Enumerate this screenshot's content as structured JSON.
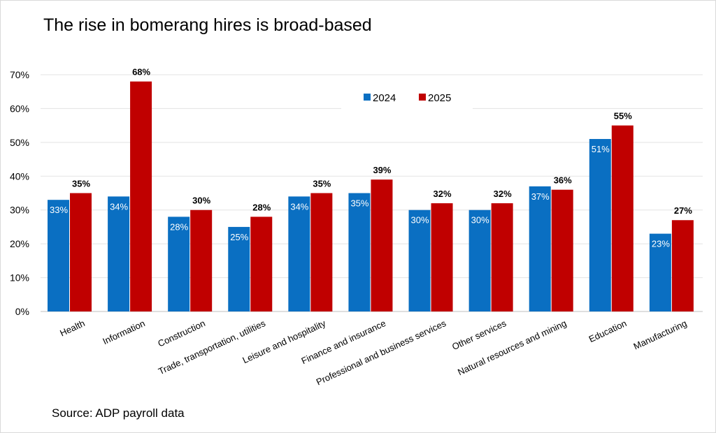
{
  "chart_data": {
    "type": "bar",
    "title": "The rise in bomerang hires is broad-based",
    "source": "Source: ADP payroll data",
    "xlabel": "",
    "ylabel": "",
    "ylim": [
      0,
      70
    ],
    "yticks": [
      "0%",
      "10%",
      "20%",
      "30%",
      "40%",
      "50%",
      "60%",
      "70%"
    ],
    "grid": true,
    "legend_position": "top-center",
    "categories": [
      "Health",
      "Information",
      "Construction",
      "Trade, transportation, utilities",
      "Leisure and hospitality",
      "Finance and insurance",
      "Professional and business services",
      "Other services",
      "Natural resources and mining",
      "Education",
      "Manufacturing"
    ],
    "series": [
      {
        "name": "2024",
        "color": "#0a6fc2",
        "values": [
          33,
          34,
          28,
          25,
          34,
          35,
          30,
          30,
          37,
          51,
          23
        ],
        "labels": [
          "33%",
          "34%",
          "28%",
          "25%",
          "34%",
          "35%",
          "30%",
          "30%",
          "37%",
          "51%",
          "23%"
        ]
      },
      {
        "name": "2025",
        "color": "#c00000",
        "values": [
          35,
          68,
          30,
          28,
          35,
          39,
          32,
          32,
          36,
          55,
          27
        ],
        "labels": [
          "35%",
          "68%",
          "30%",
          "28%",
          "35%",
          "39%",
          "32%",
          "32%",
          "36%",
          "55%",
          "27%"
        ]
      }
    ]
  }
}
